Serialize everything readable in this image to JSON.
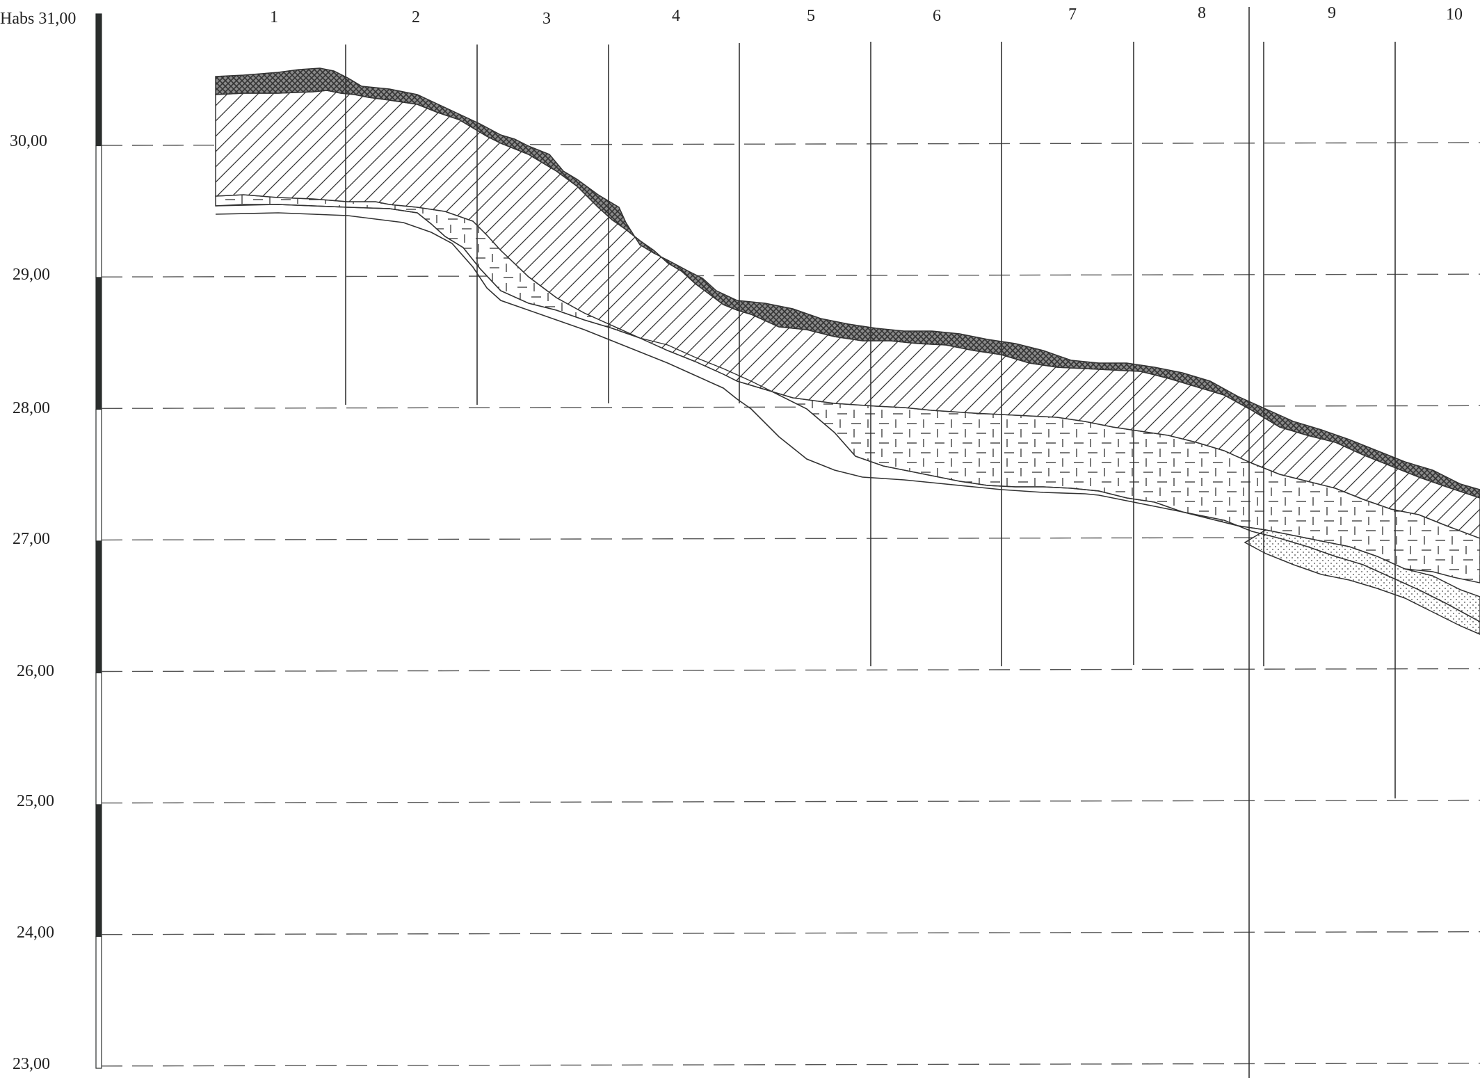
{
  "axis": {
    "title": "Habs",
    "levels": [
      "31,00",
      "30,00",
      "29,00",
      "28,00",
      "27,00",
      "26,00",
      "25,00",
      "24,00",
      "23,00"
    ]
  },
  "boreholes": [
    "1",
    "2",
    "3",
    "4",
    "5",
    "6",
    "7",
    "8",
    "9",
    "10"
  ],
  "scale_bar": {
    "dark": "#2a2d2c",
    "light": "#ffffff"
  },
  "colors": {
    "line": "#333333",
    "topsoil": "#555555",
    "hatch": "#333333",
    "background": "#ffffff"
  }
}
